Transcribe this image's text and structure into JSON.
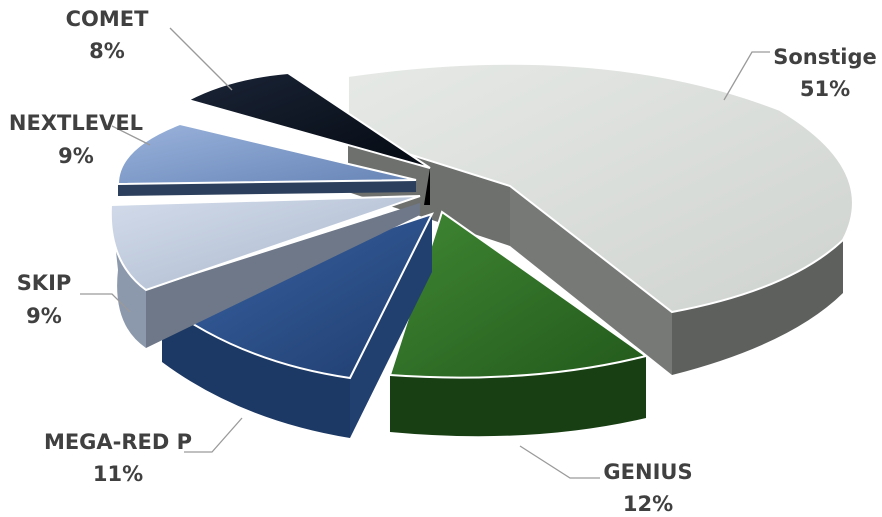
{
  "chart_data": {
    "type": "pie",
    "style": "3d-exploded",
    "slices": [
      {
        "name": "Sonstige",
        "value": 51,
        "label": "51%",
        "color": "#d9dcd9"
      },
      {
        "name": "GENIUS",
        "value": 12,
        "label": "12%",
        "color": "#2e6b25"
      },
      {
        "name": "MEGA-RED P",
        "value": 11,
        "label": "11%",
        "color": "#2d4f86"
      },
      {
        "name": "SKIP",
        "value": 9,
        "label": "9%",
        "color": "#b9c6da"
      },
      {
        "name": "NEXTLEVEL",
        "value": 9,
        "label": "9%",
        "color": "#7f9ccc"
      },
      {
        "name": "COMET",
        "value": 8,
        "label": "8%",
        "color": "#0b1422"
      }
    ],
    "legend": "none",
    "labels": "outside-with-leader-lines"
  }
}
